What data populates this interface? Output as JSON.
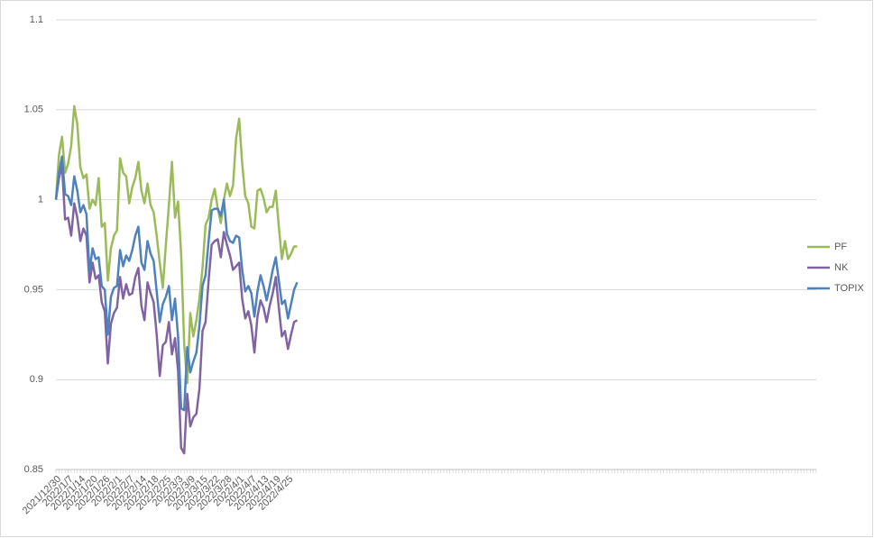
{
  "chart_data": {
    "type": "line",
    "categories": [
      "2021/12/30",
      null,
      null,
      null,
      "2022/1/7",
      null,
      null,
      null,
      "2022/1/14",
      null,
      null,
      null,
      "2022/1/20",
      null,
      null,
      null,
      "2022/1/26",
      null,
      null,
      null,
      "2022/2/1",
      null,
      null,
      null,
      "2022/2/7",
      null,
      null,
      null,
      "2022/2/14",
      null,
      null,
      null,
      "2022/2/18",
      null,
      null,
      null,
      "2022/2/25",
      null,
      null,
      null,
      "2022/3/3",
      null,
      null,
      null,
      "2022/3/9",
      null,
      null,
      null,
      "2022/3/15",
      null,
      null,
      null,
      "2022/3/22",
      null,
      null,
      null,
      "2022/3/28",
      null,
      null,
      null,
      "2022/4/1",
      null,
      null,
      null,
      "2022/4/7",
      null,
      null,
      null,
      "2022/4/13",
      null,
      null,
      null,
      "2022/4/19",
      null,
      null,
      null,
      "2022/4/25",
      null,
      null,
      null,
      null,
      null,
      null,
      null,
      null,
      null,
      null,
      null,
      null,
      null,
      null,
      null,
      null,
      null,
      null,
      null,
      null,
      null,
      null,
      null,
      null,
      null,
      null,
      null,
      null,
      null,
      null,
      null,
      null,
      null,
      null,
      null,
      null,
      null,
      null,
      null,
      null,
      null,
      null,
      null,
      null,
      null,
      null,
      null,
      null,
      null,
      null,
      null,
      null,
      null,
      null,
      null,
      null,
      null,
      null,
      null,
      null,
      null,
      null,
      null,
      null,
      null,
      null,
      null,
      null,
      null,
      null,
      null,
      null,
      null,
      null,
      null,
      null,
      null,
      null,
      null,
      null,
      null,
      null,
      null,
      null,
      null,
      null,
      null,
      null,
      null,
      null,
      null,
      null,
      null,
      null,
      null,
      null,
      null,
      null,
      null,
      null,
      null,
      null,
      null,
      null,
      null,
      null,
      null,
      null,
      null,
      null,
      null,
      null,
      null,
      null,
      null,
      null,
      null,
      null,
      null,
      null,
      null,
      null,
      null,
      null,
      null,
      null,
      null,
      null,
      null,
      null,
      null,
      null,
      null,
      null,
      null,
      null,
      null,
      null,
      null,
      null,
      null,
      null,
      null,
      null,
      null,
      null,
      null,
      null,
      null,
      null,
      null,
      null,
      null,
      null,
      null,
      null,
      null,
      null,
      null,
      null,
      null,
      null,
      null,
      null,
      null,
      null,
      null,
      null,
      null,
      null,
      null,
      null,
      null
    ],
    "series": [
      {
        "name": "PF",
        "color": "#9bbb59",
        "values": [
          1.0,
          1.025,
          1.035,
          1.015,
          1.02,
          1.03,
          1.052,
          1.042,
          1.018,
          1.012,
          1.014,
          0.995,
          1.0,
          0.997,
          1.012,
          0.985,
          0.987,
          0.955,
          0.973,
          0.98,
          0.983,
          1.023,
          1.015,
          1.013,
          0.998,
          1.007,
          1.012,
          1.021,
          1.005,
          0.998,
          1.009,
          0.997,
          0.993,
          0.98,
          0.965,
          0.951,
          0.975,
          0.997,
          1.021,
          0.99,
          0.999,
          0.97,
          0.92,
          0.898,
          0.937,
          0.924,
          0.933,
          0.945,
          0.962,
          0.986,
          0.99,
          1.0,
          1.006,
          0.995,
          0.987,
          1.0,
          1.009,
          1.002,
          1.008,
          1.034,
          1.045,
          1.02,
          1.002,
          0.998,
          0.985,
          0.984,
          1.005,
          1.006,
          1.001,
          0.993,
          0.996,
          0.996,
          1.005,
          0.985,
          0.967,
          0.977,
          0.967,
          0.97,
          0.974,
          0.974,
          null,
          null,
          null,
          null,
          null,
          null,
          null,
          null,
          null,
          null,
          null,
          null,
          null,
          null,
          null,
          null,
          null,
          null,
          null,
          null,
          null,
          null,
          null,
          null,
          null,
          null,
          null,
          null,
          null,
          null,
          null,
          null,
          null,
          null,
          null,
          null,
          null,
          null,
          null,
          null,
          null,
          null,
          null,
          null,
          null,
          null,
          null,
          null,
          null,
          null,
          null,
          null,
          null,
          null,
          null,
          null,
          null,
          null,
          null,
          null,
          null,
          null,
          null,
          null,
          null,
          null,
          null,
          null,
          null,
          null,
          null,
          null,
          null,
          null,
          null,
          null,
          null,
          null,
          null,
          null,
          null,
          null,
          null,
          null,
          null,
          null,
          null,
          null,
          null,
          null,
          null,
          null,
          null,
          null,
          null,
          null,
          null,
          null,
          null,
          null,
          null,
          null,
          null,
          null,
          null,
          null,
          null,
          null,
          null,
          null,
          null,
          null,
          null,
          null,
          null,
          null,
          null,
          null,
          null,
          null,
          null,
          null,
          null,
          null,
          null,
          null,
          null,
          null,
          null,
          null,
          null,
          null,
          null,
          null,
          null,
          null,
          null,
          null,
          null,
          null,
          null,
          null,
          null,
          null,
          null,
          null,
          null,
          null,
          null,
          null,
          null,
          null,
          null,
          null,
          null,
          null,
          null,
          null,
          null,
          null,
          null,
          null,
          null,
          null,
          null,
          null,
          null,
          null,
          null,
          null
        ]
      },
      {
        "name": "NK",
        "color": "#8064a2",
        "values": [
          1.0,
          1.012,
          1.019,
          0.989,
          0.99,
          0.98,
          0.998,
          0.99,
          0.977,
          0.984,
          0.98,
          0.954,
          0.965,
          0.956,
          0.958,
          0.943,
          0.938,
          0.909,
          0.931,
          0.937,
          0.94,
          0.957,
          0.945,
          0.953,
          0.947,
          0.948,
          0.957,
          0.962,
          0.941,
          0.933,
          0.954,
          0.948,
          0.943,
          0.925,
          0.902,
          0.919,
          0.921,
          0.932,
          0.914,
          0.923,
          0.905,
          0.862,
          0.859,
          0.892,
          0.874,
          0.879,
          0.881,
          0.895,
          0.927,
          0.932,
          0.955,
          0.975,
          0.977,
          0.978,
          0.968,
          0.982,
          0.975,
          0.969,
          0.961,
          0.963,
          0.965,
          0.945,
          0.934,
          0.938,
          0.93,
          0.915,
          0.935,
          0.944,
          0.94,
          0.932,
          0.941,
          0.948,
          0.957,
          0.94,
          0.924,
          0.927,
          0.917,
          0.925,
          0.932,
          0.933,
          null,
          null,
          null,
          null,
          null,
          null,
          null,
          null,
          null,
          null,
          null,
          null,
          null,
          null,
          null,
          null,
          null,
          null,
          null,
          null,
          null,
          null,
          null,
          null,
          null,
          null,
          null,
          null,
          null,
          null,
          null,
          null,
          null,
          null,
          null,
          null,
          null,
          null,
          null,
          null,
          null,
          null,
          null,
          null,
          null,
          null,
          null,
          null,
          null,
          null,
          null,
          null,
          null,
          null,
          null,
          null,
          null,
          null,
          null,
          null,
          null,
          null,
          null,
          null,
          null,
          null,
          null,
          null,
          null,
          null,
          null,
          null,
          null,
          null,
          null,
          null,
          null,
          null,
          null,
          null,
          null,
          null,
          null,
          null,
          null,
          null,
          null,
          null,
          null,
          null,
          null,
          null,
          null,
          null,
          null,
          null,
          null,
          null,
          null,
          null,
          null,
          null,
          null,
          null,
          null,
          null,
          null,
          null,
          null,
          null,
          null,
          null,
          null,
          null,
          null,
          null,
          null,
          null,
          null,
          null,
          null,
          null,
          null,
          null,
          null,
          null,
          null,
          null,
          null,
          null,
          null,
          null,
          null,
          null,
          null,
          null,
          null,
          null,
          null,
          null,
          null,
          null,
          null,
          null,
          null,
          null,
          null,
          null,
          null,
          null,
          null,
          null,
          null,
          null,
          null,
          null,
          null,
          null,
          null,
          null,
          null,
          null,
          null,
          null,
          null,
          null,
          null,
          null,
          null,
          null
        ]
      },
      {
        "name": "TOPIX",
        "color": "#4f81bd",
        "values": [
          1.0,
          1.015,
          1.024,
          1.003,
          1.002,
          0.997,
          1.013,
          1.005,
          0.993,
          0.997,
          0.992,
          0.96,
          0.973,
          0.967,
          0.968,
          0.952,
          0.95,
          0.925,
          0.946,
          0.951,
          0.952,
          0.972,
          0.963,
          0.969,
          0.966,
          0.972,
          0.98,
          0.985,
          0.965,
          0.961,
          0.977,
          0.97,
          0.966,
          0.949,
          0.932,
          0.942,
          0.946,
          0.952,
          0.933,
          0.945,
          0.924,
          0.884,
          0.883,
          0.918,
          0.904,
          0.91,
          0.915,
          0.93,
          0.952,
          0.958,
          0.977,
          0.994,
          0.995,
          0.995,
          0.991,
          1.0,
          0.981,
          0.977,
          0.976,
          0.98,
          0.979,
          0.961,
          0.949,
          0.952,
          0.948,
          0.935,
          0.949,
          0.958,
          0.952,
          0.944,
          0.952,
          0.961,
          0.968,
          0.955,
          0.942,
          0.944,
          0.934,
          0.942,
          0.95,
          0.954,
          null,
          null,
          null,
          null,
          null,
          null,
          null,
          null,
          null,
          null,
          null,
          null,
          null,
          null,
          null,
          null,
          null,
          null,
          null,
          null,
          null,
          null,
          null,
          null,
          null,
          null,
          null,
          null,
          null,
          null,
          null,
          null,
          null,
          null,
          null,
          null,
          null,
          null,
          null,
          null,
          null,
          null,
          null,
          null,
          null,
          null,
          null,
          null,
          null,
          null,
          null,
          null,
          null,
          null,
          null,
          null,
          null,
          null,
          null,
          null,
          null,
          null,
          null,
          null,
          null,
          null,
          null,
          null,
          null,
          null,
          null,
          null,
          null,
          null,
          null,
          null,
          null,
          null,
          null,
          null,
          null,
          null,
          null,
          null,
          null,
          null,
          null,
          null,
          null,
          null,
          null,
          null,
          null,
          null,
          null,
          null,
          null,
          null,
          null,
          null,
          null,
          null,
          null,
          null,
          null,
          null,
          null,
          null,
          null,
          null,
          null,
          null,
          null,
          null,
          null,
          null,
          null,
          null,
          null,
          null,
          null,
          null,
          null,
          null,
          null,
          null,
          null,
          null,
          null,
          null,
          null,
          null,
          null,
          null,
          null,
          null,
          null,
          null,
          null,
          null,
          null,
          null,
          null,
          null,
          null,
          null,
          null,
          null,
          null,
          null,
          null,
          null,
          null,
          null,
          null,
          null,
          null,
          null,
          null,
          null,
          null,
          null,
          null,
          null,
          null,
          null,
          null,
          null,
          null,
          null
        ]
      }
    ],
    "ylim": [
      0.85,
      1.1
    ],
    "yticks": [
      0.85,
      0.9,
      0.95,
      1,
      1.05,
      1.1
    ],
    "grid": true,
    "legend": "right"
  }
}
